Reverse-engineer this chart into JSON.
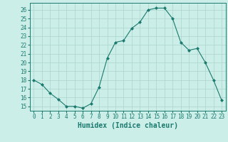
{
  "x": [
    0,
    1,
    2,
    3,
    4,
    5,
    6,
    7,
    8,
    9,
    10,
    11,
    12,
    13,
    14,
    15,
    16,
    17,
    18,
    19,
    20,
    21,
    22,
    23
  ],
  "y": [
    18.0,
    17.5,
    16.5,
    15.8,
    15.0,
    15.0,
    14.8,
    15.3,
    17.2,
    20.5,
    22.3,
    22.5,
    23.9,
    24.6,
    26.0,
    26.2,
    26.2,
    25.0,
    22.3,
    21.4,
    21.6,
    20.0,
    18.0,
    15.7
  ],
  "line_color": "#1a7a6e",
  "marker": "D",
  "marker_size": 2.0,
  "bg_color": "#cceee8",
  "grid_color": "#aad4cc",
  "xlabel": "Humidex (Indice chaleur)",
  "xlim": [
    -0.5,
    23.5
  ],
  "ylim": [
    14.5,
    26.8
  ],
  "yticks": [
    15,
    16,
    17,
    18,
    19,
    20,
    21,
    22,
    23,
    24,
    25,
    26
  ],
  "xticks": [
    0,
    1,
    2,
    3,
    4,
    5,
    6,
    7,
    8,
    9,
    10,
    11,
    12,
    13,
    14,
    15,
    16,
    17,
    18,
    19,
    20,
    21,
    22,
    23
  ],
  "tick_color": "#1a7a6e",
  "xlabel_fontsize": 7.0,
  "tick_fontsize": 5.5,
  "linewidth": 0.8
}
